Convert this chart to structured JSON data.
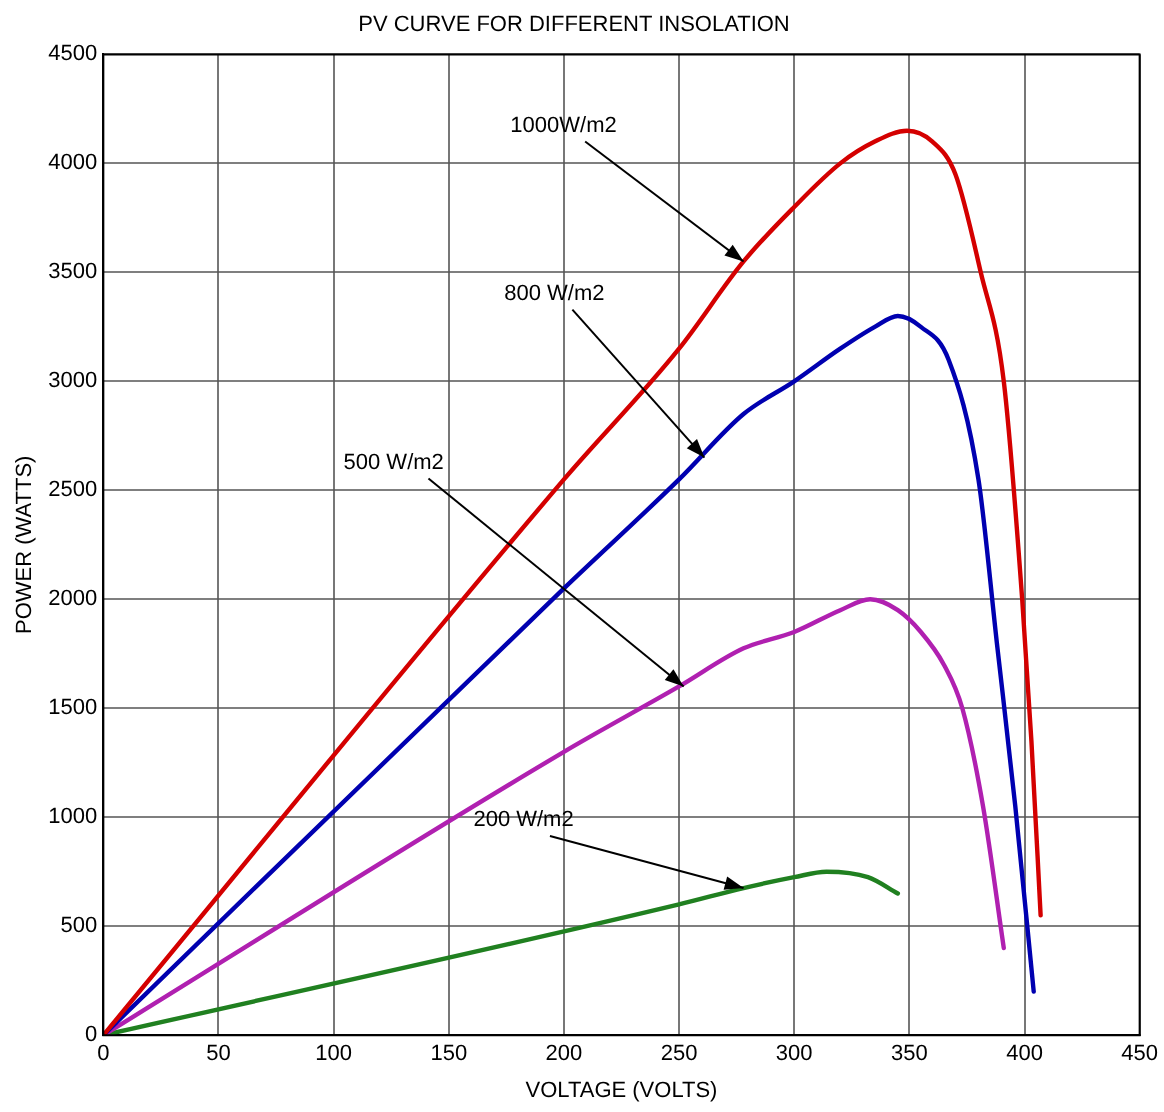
{
  "chart_data": {
    "type": "line",
    "title": "PV CURVE FOR DIFFERENT INSOLATION",
    "xlabel": "VOLTAGE (VOLTS)",
    "ylabel": "POWER (WATTS)",
    "series": [
      {
        "color": "#d40000",
        "x": [
          0,
          200,
          250,
          278,
          300,
          320,
          335,
          349,
          360,
          370,
          381,
          391,
          399,
          403,
          407
        ],
        "values": [
          0,
          2550,
          3150,
          3550,
          3800,
          4000,
          4100,
          4150,
          4100,
          3950,
          3500,
          3000,
          2000,
          1350,
          550
        ]
      },
      {
        "color": "#0000b0",
        "x": [
          0,
          200,
          250,
          278,
          300,
          320,
          335,
          345,
          355,
          367,
          380,
          388,
          396,
          404
        ],
        "values": [
          0,
          2050,
          2550,
          2850,
          3000,
          3150,
          3250,
          3300,
          3250,
          3100,
          2550,
          1800,
          1050,
          200
        ]
      },
      {
        "color": "#b020b0",
        "x": [
          0,
          200,
          250,
          278,
          300,
          320,
          333,
          345,
          355,
          365,
          373,
          382,
          391
        ],
        "values": [
          0,
          1300,
          1600,
          1775,
          1850,
          1950,
          2000,
          1950,
          1850,
          1700,
          1500,
          1050,
          400
        ]
      },
      {
        "color": "#208020",
        "x": [
          0,
          250,
          278,
          300,
          314,
          332,
          345
        ],
        "values": [
          0,
          600,
          675,
          725,
          750,
          725,
          650
        ]
      }
    ],
    "annotations": [
      {
        "text": "1000W/m2",
        "x": 278,
        "y": 3550
      },
      {
        "text": "800 W/m2",
        "x": 261,
        "y": 2650
      },
      {
        "text": "500 W/m2",
        "x": 252,
        "y": 1600
      },
      {
        "text": "200 W/m2",
        "x": 278,
        "y": 675
      }
    ],
    "xlim": [
      0,
      450
    ],
    "xticks": [
      0,
      50,
      100,
      150,
      200,
      250,
      300,
      350,
      400,
      450
    ],
    "ylim": [
      0,
      4500
    ],
    "yticks": [
      0,
      500,
      1000,
      1500,
      2000,
      2500,
      3000,
      3500,
      4000,
      4500
    ],
    "grid": true,
    "legend": false,
    "marker": "none",
    "line_style": "solid"
  }
}
